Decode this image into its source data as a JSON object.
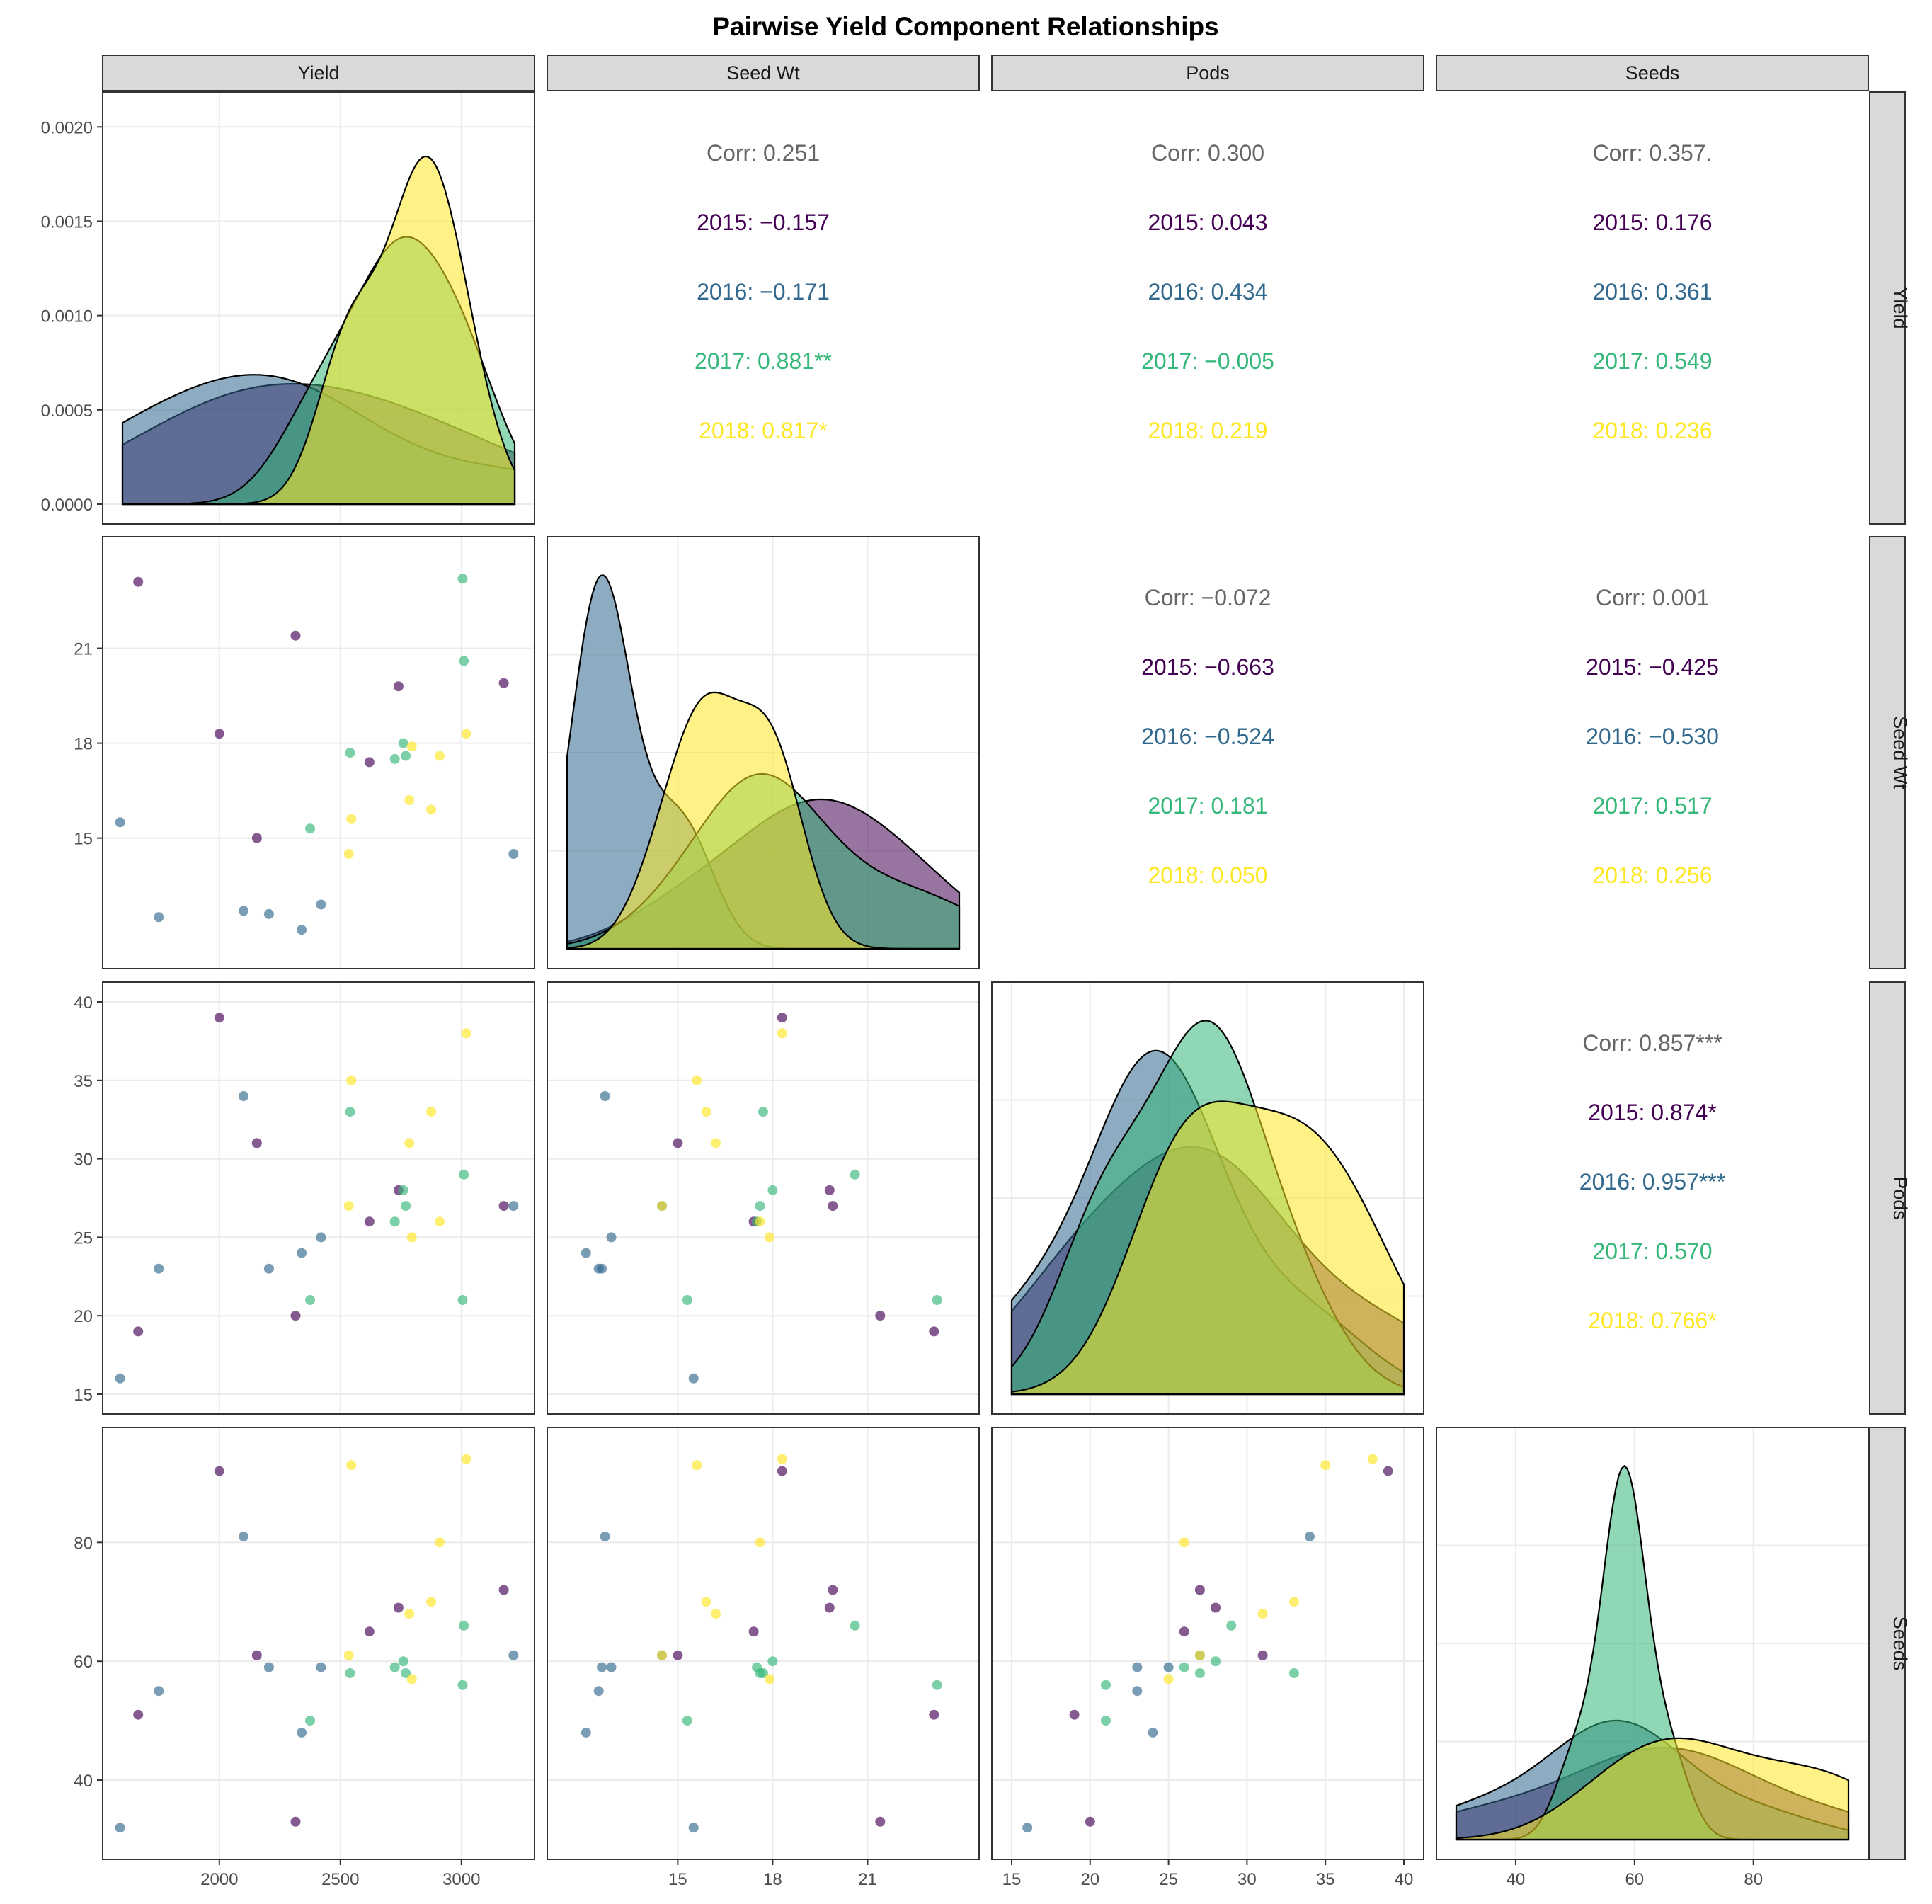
{
  "title": "Pairwise Yield Component Relationships",
  "chart_data": {
    "type": "scatter",
    "title": "Pairwise Yield Component Relationships",
    "variables": [
      {
        "key": "yield",
        "label": "Yield",
        "range": [
          1600,
          3220
        ],
        "ticks": [
          2000,
          2500,
          3000
        ],
        "density_ticks": [
          0.0,
          0.0005,
          0.001,
          0.0015,
          0.002
        ],
        "density_tick_labels": [
          "0.0000",
          "0.0005",
          "0.0010",
          "0.0015",
          "0.0020"
        ],
        "density_max": 0.00208
      },
      {
        "key": "seedwt",
        "label": "Seed Wt",
        "range": [
          11.5,
          23.9
        ],
        "ticks": [
          15,
          18,
          21
        ]
      },
      {
        "key": "pods",
        "label": "Pods",
        "range": [
          15,
          40
        ],
        "ticks": [
          15,
          20,
          25,
          30,
          35,
          40
        ]
      },
      {
        "key": "seeds",
        "label": "Seeds",
        "range": [
          30,
          96
        ],
        "ticks": [
          40,
          60,
          80
        ]
      }
    ],
    "years": [
      {
        "year": "2015",
        "color": "#440154"
      },
      {
        "year": "2016",
        "color": "#31688e"
      },
      {
        "year": "2017",
        "color": "#35b779"
      },
      {
        "year": "2018",
        "color": "#fde725"
      }
    ],
    "overall_color": "#666666",
    "points": [
      {
        "year": "2015",
        "yield": 1665,
        "seedwt": 23.1,
        "pods": 19,
        "seeds": 51
      },
      {
        "year": "2015",
        "yield": 2000,
        "seedwt": 18.3,
        "pods": 39,
        "seeds": 92
      },
      {
        "year": "2015",
        "yield": 2155,
        "seedwt": 15.0,
        "pods": 31,
        "seeds": 61
      },
      {
        "year": "2015",
        "yield": 2315,
        "seedwt": 21.4,
        "pods": 20,
        "seeds": 33
      },
      {
        "year": "2015",
        "yield": 2620,
        "seedwt": 17.4,
        "pods": 26,
        "seeds": 65
      },
      {
        "year": "2015",
        "yield": 2740,
        "seedwt": 19.8,
        "pods": 28,
        "seeds": 69
      },
      {
        "year": "2015",
        "yield": 3175,
        "seedwt": 19.9,
        "pods": 27,
        "seeds": 72
      },
      {
        "year": "2016",
        "yield": 1590,
        "seedwt": 15.5,
        "pods": 16,
        "seeds": 32
      },
      {
        "year": "2016",
        "yield": 1750,
        "seedwt": 12.5,
        "pods": 23,
        "seeds": 55
      },
      {
        "year": "2016",
        "yield": 2100,
        "seedwt": 12.7,
        "pods": 34,
        "seeds": 81
      },
      {
        "year": "2016",
        "yield": 2205,
        "seedwt": 12.6,
        "pods": 23,
        "seeds": 59
      },
      {
        "year": "2016",
        "yield": 2340,
        "seedwt": 12.1,
        "pods": 24,
        "seeds": 48
      },
      {
        "year": "2016",
        "yield": 2420,
        "seedwt": 12.9,
        "pods": 25,
        "seeds": 59
      },
      {
        "year": "2016",
        "yield": 3215,
        "seedwt": 14.5,
        "pods": 27,
        "seeds": 61
      },
      {
        "year": "2017",
        "yield": 2375,
        "seedwt": 15.3,
        "pods": 21,
        "seeds": 50
      },
      {
        "year": "2017",
        "yield": 2540,
        "seedwt": 17.7,
        "pods": 33,
        "seeds": 58
      },
      {
        "year": "2017",
        "yield": 2725,
        "seedwt": 17.5,
        "pods": 26,
        "seeds": 59
      },
      {
        "year": "2017",
        "yield": 2760,
        "seedwt": 18.0,
        "pods": 28,
        "seeds": 60
      },
      {
        "year": "2017",
        "yield": 2770,
        "seedwt": 17.6,
        "pods": 27,
        "seeds": 58
      },
      {
        "year": "2017",
        "yield": 3005,
        "seedwt": 23.2,
        "pods": 21,
        "seeds": 56
      },
      {
        "year": "2017",
        "yield": 3010,
        "seedwt": 20.6,
        "pods": 29,
        "seeds": 66
      },
      {
        "year": "2018",
        "yield": 2535,
        "seedwt": 14.5,
        "pods": 27,
        "seeds": 61
      },
      {
        "year": "2018",
        "yield": 2545,
        "seedwt": 15.6,
        "pods": 35,
        "seeds": 93
      },
      {
        "year": "2018",
        "yield": 2785,
        "seedwt": 16.2,
        "pods": 31,
        "seeds": 68
      },
      {
        "year": "2018",
        "yield": 2795,
        "seedwt": 17.9,
        "pods": 25,
        "seeds": 57
      },
      {
        "year": "2018",
        "yield": 2875,
        "seedwt": 15.9,
        "pods": 33,
        "seeds": 70
      },
      {
        "year": "2018",
        "yield": 2910,
        "seedwt": 17.6,
        "pods": 26,
        "seeds": 80
      },
      {
        "year": "2018",
        "yield": 3020,
        "seedwt": 18.3,
        "pods": 38,
        "seeds": 94
      }
    ],
    "correlations": [
      {
        "row": "yield",
        "col": "seedwt",
        "lines": [
          {
            "label": "Corr: 0.251",
            "group": "overall"
          },
          {
            "label": "2015: −0.157",
            "group": "2015"
          },
          {
            "label": "2016: −0.171",
            "group": "2016"
          },
          {
            "label": "2017: 0.881**",
            "group": "2017"
          },
          {
            "label": "2018: 0.817*",
            "group": "2018"
          }
        ]
      },
      {
        "row": "yield",
        "col": "pods",
        "lines": [
          {
            "label": "Corr: 0.300",
            "group": "overall"
          },
          {
            "label": "2015: 0.043",
            "group": "2015"
          },
          {
            "label": "2016: 0.434",
            "group": "2016"
          },
          {
            "label": "2017: −0.005",
            "group": "2017"
          },
          {
            "label": "2018: 0.219",
            "group": "2018"
          }
        ]
      },
      {
        "row": "yield",
        "col": "seeds",
        "lines": [
          {
            "label": "Corr: 0.357.",
            "group": "overall"
          },
          {
            "label": "2015: 0.176",
            "group": "2015"
          },
          {
            "label": "2016: 0.361",
            "group": "2016"
          },
          {
            "label": "2017: 0.549",
            "group": "2017"
          },
          {
            "label": "2018: 0.236",
            "group": "2018"
          }
        ]
      },
      {
        "row": "seedwt",
        "col": "pods",
        "lines": [
          {
            "label": "Corr: −0.072",
            "group": "overall"
          },
          {
            "label": "2015: −0.663",
            "group": "2015"
          },
          {
            "label": "2016: −0.524",
            "group": "2016"
          },
          {
            "label": "2017: 0.181",
            "group": "2017"
          },
          {
            "label": "2018: 0.050",
            "group": "2018"
          }
        ]
      },
      {
        "row": "seedwt",
        "col": "seeds",
        "lines": [
          {
            "label": "Corr: 0.001",
            "group": "overall"
          },
          {
            "label": "2015: −0.425",
            "group": "2015"
          },
          {
            "label": "2016: −0.530",
            "group": "2016"
          },
          {
            "label": "2017: 0.517",
            "group": "2017"
          },
          {
            "label": "2018: 0.256",
            "group": "2018"
          }
        ]
      },
      {
        "row": "pods",
        "col": "seeds",
        "lines": [
          {
            "label": "Corr: 0.857***",
            "group": "overall"
          },
          {
            "label": "2015: 0.874*",
            "group": "2015"
          },
          {
            "label": "2016: 0.957***",
            "group": "2016"
          },
          {
            "label": "2017: 0.570",
            "group": "2017"
          },
          {
            "label": "2018: 0.766*",
            "group": "2018"
          }
        ]
      }
    ]
  }
}
